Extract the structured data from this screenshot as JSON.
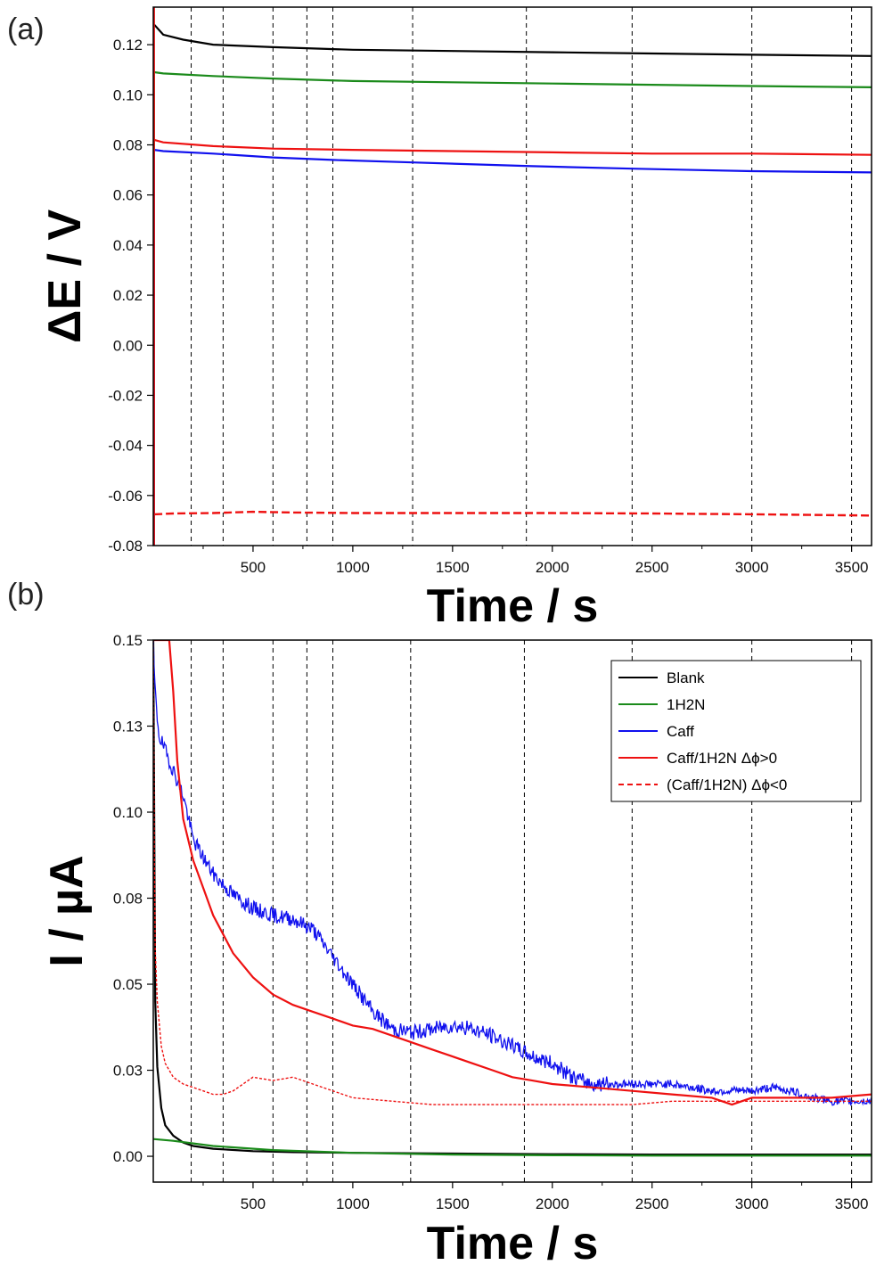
{
  "panel_labels": [
    "(a)",
    "(b)"
  ],
  "chart_data": [
    {
      "type": "line",
      "panel": "(a)",
      "xlabel": "Time / s",
      "ylabel": "ΔE / V",
      "xlim": [
        0,
        3600
      ],
      "ylim": [
        -0.08,
        0.135
      ],
      "x_ticks": [
        500,
        1000,
        1500,
        2000,
        2500,
        3000,
        3500
      ],
      "y_ticks": [
        "0.12",
        "0.10",
        "0.08",
        "0.06",
        "0.04",
        "0.02",
        "0.00",
        "-0.02",
        "-0.04",
        "-0.06",
        "-0.08"
      ],
      "y_tick_values": [
        0.12,
        0.1,
        0.08,
        0.06,
        0.04,
        0.02,
        0.0,
        -0.02,
        -0.04,
        -0.06,
        -0.08
      ],
      "vlines": [
        190,
        350,
        600,
        770,
        900,
        1300,
        1870,
        2400,
        3000,
        3500
      ],
      "series": [
        {
          "name": "Blank",
          "color": "#000000",
          "dash": "solid",
          "x": [
            5,
            50,
            150,
            300,
            600,
            1000,
            1500,
            2000,
            2500,
            3000,
            3600
          ],
          "y": [
            0.128,
            0.124,
            0.122,
            0.12,
            0.119,
            0.118,
            0.1175,
            0.117,
            0.1165,
            0.116,
            0.1155
          ]
        },
        {
          "name": "1H2N",
          "color": "#1a8a1a",
          "dash": "solid",
          "x": [
            5,
            50,
            300,
            600,
            1000,
            1500,
            2000,
            2500,
            3000,
            3600
          ],
          "y": [
            0.109,
            0.1085,
            0.1075,
            0.1065,
            0.1055,
            0.105,
            0.1045,
            0.104,
            0.1035,
            0.103
          ]
        },
        {
          "name": "Caff/1H2N Δϕ>0",
          "color": "#ee1111",
          "dash": "solid",
          "x": [
            5,
            50,
            300,
            600,
            1000,
            1500,
            2000,
            2500,
            3000,
            3600
          ],
          "y": [
            0.082,
            0.081,
            0.0795,
            0.0785,
            0.078,
            0.0775,
            0.077,
            0.0765,
            0.0765,
            0.076
          ]
        },
        {
          "name": "Caff",
          "color": "#1010ee",
          "dash": "solid",
          "x": [
            5,
            50,
            300,
            600,
            900,
            1300,
            1900,
            2400,
            3000,
            3600
          ],
          "y": [
            0.078,
            0.0775,
            0.0765,
            0.075,
            0.074,
            0.073,
            0.0715,
            0.0705,
            0.0695,
            0.069
          ]
        },
        {
          "name": "(Caff/1H2N) Δϕ<0",
          "color": "#ee1111",
          "dash": "dashed",
          "x": [
            5,
            100,
            300,
            500,
            700,
            1000,
            1500,
            2000,
            2500,
            3000,
            3600
          ],
          "y": [
            -0.0675,
            -0.0672,
            -0.067,
            -0.0665,
            -0.0668,
            -0.067,
            -0.067,
            -0.067,
            -0.0672,
            -0.0675,
            -0.068
          ]
        }
      ]
    },
    {
      "type": "line",
      "panel": "(b)",
      "xlabel": "Time / s",
      "ylabel": "I / µA",
      "xlim": [
        0,
        3600
      ],
      "ylim": [
        -0.0075,
        0.15
      ],
      "x_ticks": [
        500,
        1000,
        1500,
        2000,
        2500,
        3000,
        3500
      ],
      "y_ticks": [
        "0.15",
        "0.13",
        "0.10",
        "0.08",
        "0.05",
        "0.03",
        "0.00"
      ],
      "y_tick_values": [
        0.15,
        0.125,
        0.1,
        0.075,
        0.05,
        0.025,
        0.0
      ],
      "vlines": [
        190,
        350,
        600,
        770,
        900,
        1290,
        1860,
        2400,
        3000,
        3500
      ],
      "legend_position": "top-right",
      "series": [
        {
          "name": "Blank",
          "color": "#000000",
          "dash": "solid",
          "x": [
            0,
            10,
            20,
            40,
            60,
            100,
            150,
            200,
            300,
            500,
            700,
            1000,
            1500,
            2000,
            2500,
            3000,
            3600
          ],
          "y": [
            0.15,
            0.045,
            0.026,
            0.014,
            0.009,
            0.006,
            0.004,
            0.003,
            0.0022,
            0.0015,
            0.0012,
            0.001,
            0.0008,
            0.0006,
            0.0005,
            0.0005,
            0.0005
          ]
        },
        {
          "name": "1H2N",
          "color": "#1a8a1a",
          "dash": "solid",
          "x": [
            0,
            100,
            300,
            600,
            1000,
            1500,
            2000,
            2500,
            3000,
            3600
          ],
          "y": [
            0.005,
            0.0045,
            0.003,
            0.0018,
            0.001,
            0.0005,
            0.0003,
            0.0002,
            0.0002,
            0.0002
          ]
        },
        {
          "name": "Caff",
          "color": "#1010ee",
          "dash": "solid",
          "noise": true,
          "x": [
            0,
            5,
            15,
            30,
            80,
            150,
            200,
            300,
            400,
            500,
            600,
            700,
            800,
            900,
            1000,
            1100,
            1200,
            1300,
            1400,
            1500,
            1600,
            1700,
            1800,
            1900,
            2000,
            2100,
            2200,
            2300,
            2400,
            2500,
            2600,
            2700,
            2800,
            2900,
            3000,
            3100,
            3200,
            3300,
            3400,
            3500,
            3600
          ],
          "y": [
            0.15,
            0.14,
            0.13,
            0.122,
            0.115,
            0.105,
            0.092,
            0.082,
            0.076,
            0.072,
            0.07,
            0.069,
            0.066,
            0.058,
            0.05,
            0.042,
            0.037,
            0.036,
            0.037,
            0.038,
            0.037,
            0.035,
            0.032,
            0.029,
            0.027,
            0.023,
            0.021,
            0.021,
            0.021,
            0.021,
            0.021,
            0.02,
            0.019,
            0.019,
            0.019,
            0.02,
            0.019,
            0.017,
            0.016,
            0.016,
            0.016
          ]
        },
        {
          "name": "Caff/1H2N Δϕ>0",
          "color": "#ee1111",
          "dash": "solid",
          "x": [
            0,
            80,
            100,
            120,
            150,
            200,
            250,
            300,
            400,
            500,
            600,
            700,
            800,
            900,
            1000,
            1100,
            1200,
            1300,
            1400,
            1500,
            1600,
            1700,
            1800,
            1900,
            2000,
            2200,
            2400,
            2600,
            2800,
            2900,
            3000,
            3200,
            3400,
            3600
          ],
          "y": [
            0.15,
            0.15,
            0.135,
            0.115,
            0.098,
            0.086,
            0.078,
            0.07,
            0.059,
            0.052,
            0.047,
            0.044,
            0.042,
            0.04,
            0.038,
            0.037,
            0.035,
            0.033,
            0.031,
            0.029,
            0.027,
            0.025,
            0.023,
            0.022,
            0.021,
            0.02,
            0.019,
            0.018,
            0.017,
            0.015,
            0.017,
            0.017,
            0.017,
            0.018
          ]
        },
        {
          "name": "(Caff/1H2N) Δϕ<0",
          "color": "#ee1111",
          "dash": "dashed",
          "x": [
            0,
            5,
            10,
            20,
            40,
            60,
            100,
            150,
            200,
            300,
            350,
            400,
            500,
            600,
            700,
            800,
            900,
            1000,
            1200,
            1400,
            1600,
            1800,
            2000,
            2200,
            2400,
            2600,
            2800,
            3000,
            3200,
            3400,
            3600
          ],
          "y": [
            0.15,
            0.09,
            0.06,
            0.045,
            0.032,
            0.027,
            0.023,
            0.021,
            0.02,
            0.018,
            0.018,
            0.019,
            0.023,
            0.022,
            0.023,
            0.021,
            0.019,
            0.017,
            0.016,
            0.015,
            0.015,
            0.015,
            0.015,
            0.015,
            0.015,
            0.016,
            0.016,
            0.016,
            0.016,
            0.016,
            0.016
          ]
        }
      ]
    }
  ]
}
